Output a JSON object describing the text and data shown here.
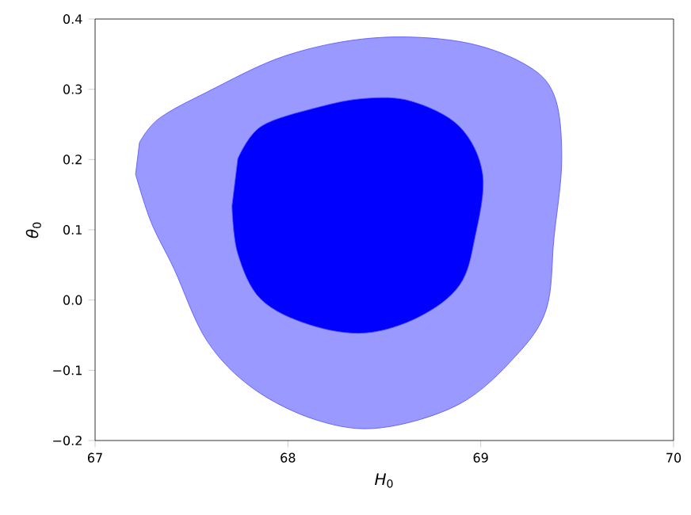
{
  "chart_data": {
    "type": "area",
    "xlabel": "*H*$_{0}$",
    "ylabel": "*θ*$_{0}$",
    "xlim": [
      67,
      70
    ],
    "ylim": [
      -0.2,
      0.4
    ],
    "xticks": [
      67,
      68,
      69,
      70
    ],
    "yticks": [
      {
        "value": -0.2,
        "label": "−0.2"
      },
      {
        "value": -0.1,
        "label": "−0.1"
      },
      {
        "value": 0,
        "label": "0.0"
      },
      {
        "value": 0.1,
        "label": "0.1"
      },
      {
        "value": 0.2,
        "label": "0.2"
      },
      {
        "value": 0.3,
        "label": "0.3"
      },
      {
        "value": 0.4,
        "label": "0.4"
      }
    ],
    "series": [
      {
        "color": "#9999ff",
        "x": [
          67.23,
          67.33,
          67.58,
          67.99,
          68.44,
          68.89,
          69.22,
          69.38,
          69.42,
          69.38,
          69.34,
          69.18,
          68.89,
          68.48,
          68.15,
          67.82,
          67.58,
          67.41,
          67.29,
          67.21
        ],
        "values": [
          0.224,
          0.258,
          0.296,
          0.348,
          0.373,
          0.368,
          0.337,
          0.292,
          0.201,
          0.089,
          -0.013,
          -0.08,
          -0.148,
          -0.182,
          -0.171,
          -0.126,
          -0.058,
          0.044,
          0.111,
          0.179
        ]
      },
      {
        "color": "#0000ff",
        "x": [
          67.74,
          67.86,
          68.15,
          68.4,
          68.64,
          68.89,
          69.01,
          68.97,
          68.89,
          68.68,
          68.4,
          68.11,
          67.86,
          67.74,
          67.71
        ],
        "values": [
          0.201,
          0.247,
          0.274,
          0.287,
          0.283,
          0.247,
          0.179,
          0.089,
          0.021,
          -0.024,
          -0.047,
          -0.035,
          0.001,
          0.066,
          0.134
        ]
      }
    ]
  }
}
